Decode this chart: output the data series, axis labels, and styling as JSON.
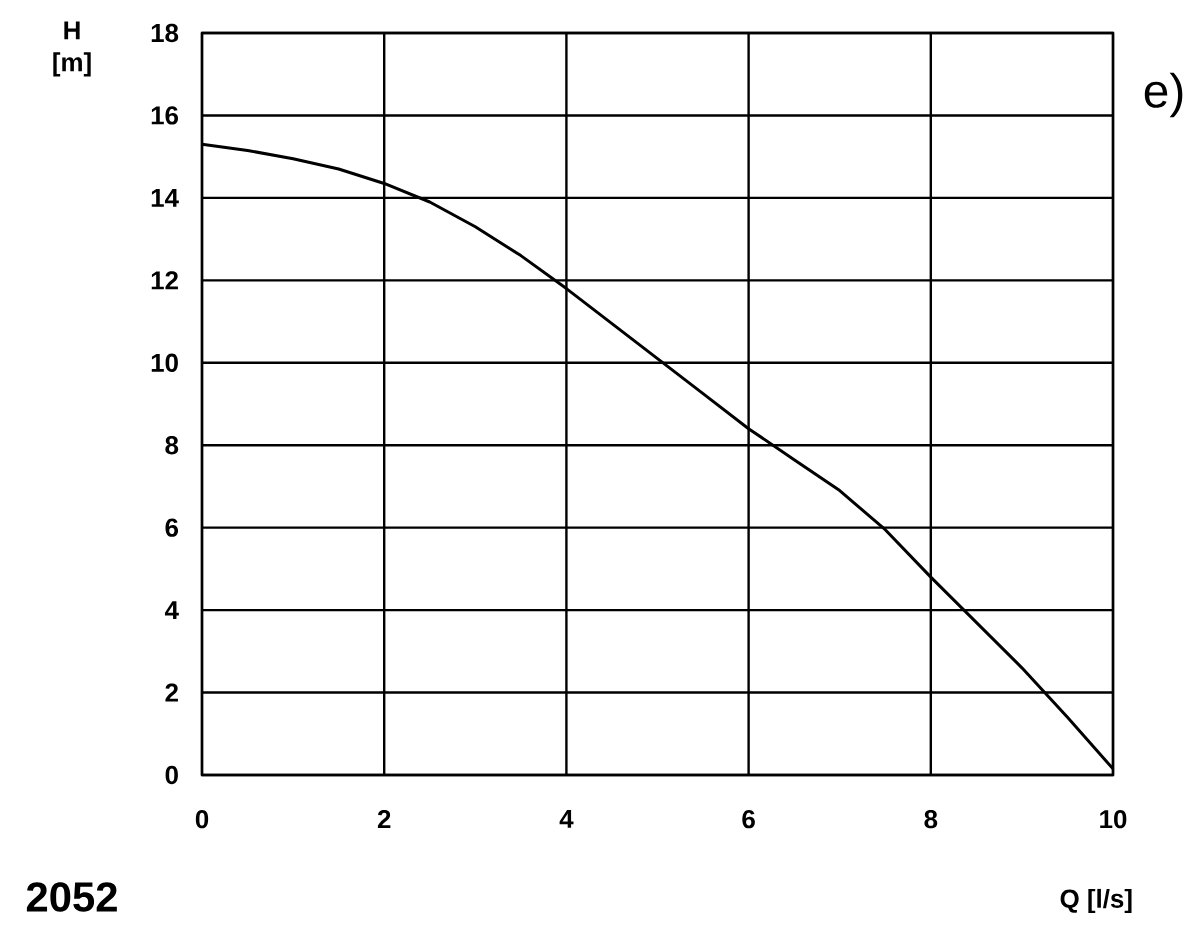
{
  "chart_data": {
    "type": "line",
    "xlabel": "Q [l/s]",
    "ylabel": "H [m]",
    "annotations": [
      "e)",
      "2052"
    ],
    "x": [
      0,
      0.5,
      1,
      1.5,
      2,
      2.5,
      3,
      3.5,
      4,
      4.5,
      5,
      5.5,
      6,
      6.5,
      7,
      7.5,
      8,
      8.5,
      9,
      9.5,
      10
    ],
    "series": [
      {
        "color": "#000000",
        "values": [
          15.3,
          15.15,
          14.95,
          14.7,
          14.35,
          13.9,
          13.3,
          12.6,
          11.8,
          10.95,
          10.1,
          9.25,
          8.4,
          7.65,
          6.9,
          5.95,
          4.8,
          3.7,
          2.6,
          1.4,
          0.15
        ]
      }
    ],
    "xlim": [
      0,
      10
    ],
    "ylim": [
      0,
      18
    ],
    "xticks": [
      0,
      2,
      4,
      6,
      8,
      10
    ],
    "yticks": [
      0,
      2,
      4,
      6,
      8,
      10,
      12,
      14,
      16,
      18
    ],
    "grid": true,
    "marker": "none",
    "line_style": "solid"
  }
}
